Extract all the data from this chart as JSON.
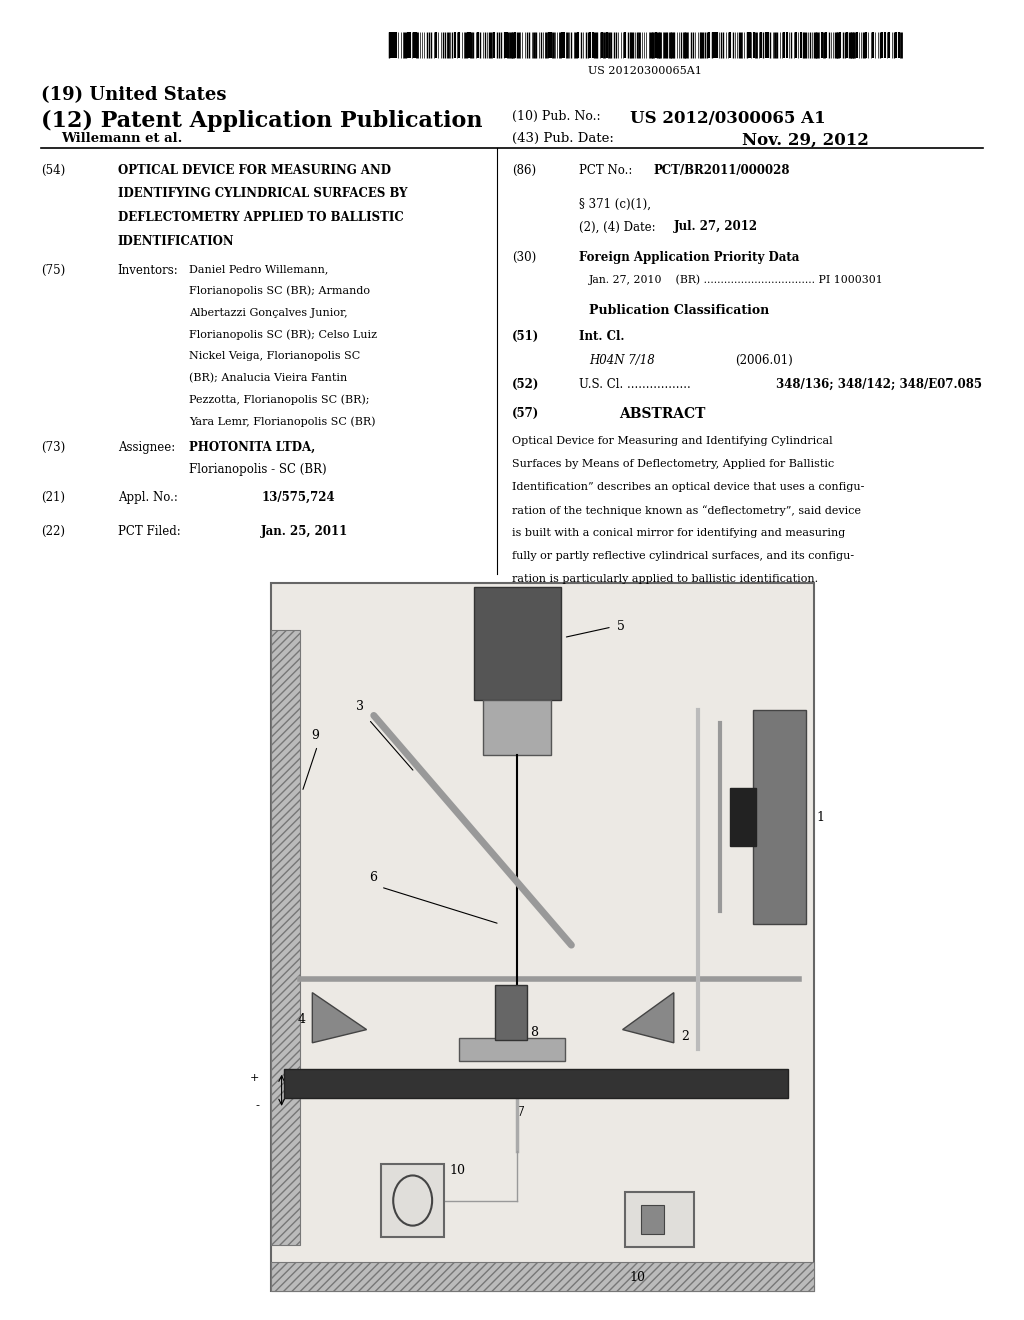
{
  "background_color": "#ffffff",
  "barcode_text": "US 20120300065A1",
  "title_19": "(19) United States",
  "title_12": "(12) Patent Application Publication",
  "pub_no_label": "(10) Pub. No.:",
  "pub_no_value": "US 2012/0300065 A1",
  "inventor_label": "Willemann et al.",
  "pub_date_label": "(43) Pub. Date:",
  "pub_date_value": "Nov. 29, 2012",
  "field_54_label": "(54)",
  "field_54_title_lines": [
    "OPTICAL DEVICE FOR MEASURING AND",
    "IDENTIFYING CYLINDRICAL SURFACES BY",
    "DEFLECTOMETRY APPLIED TO BALLISTIC",
    "IDENTIFICATION"
  ],
  "field_75_label": "(75)",
  "field_75_key": "Inventors:",
  "field_75_lines": [
    "Daniel Pedro Willemann,",
    "Florianopolis SC (BR); Armando",
    "Albertazzi Gonçalves Junior,",
    "Florianopolis SC (BR); Celso Luiz",
    "Nickel Veiga, Florianopolis SC",
    "(BR); Analucia Vieira Fantin",
    "Pezzotta, Florianopolis SC (BR);",
    "Yara Lemr, Florianopolis SC (BR)"
  ],
  "field_73_label": "(73)",
  "field_73_key": "Assignee:",
  "field_73_lines": [
    "PHOTONITA LTDA,",
    "Florianopolis - SC (BR)"
  ],
  "field_21_label": "(21)",
  "field_21_key": "Appl. No.:",
  "field_21_value": "13/575,724",
  "field_22_label": "(22)",
  "field_22_key": "PCT Filed:",
  "field_22_value": "Jan. 25, 2011",
  "field_86_label": "(86)",
  "field_86_key": "PCT No.:",
  "field_86_value": "PCT/BR2011/000028",
  "field_86_sub1": "§ 371 (c)(1),",
  "field_86_sub2": "(2), (4) Date:",
  "field_86_date": "Jul. 27, 2012",
  "field_30_label": "(30)",
  "field_30_title": "Foreign Application Priority Data",
  "field_30_data": "Jan. 27, 2010    (BR) ................................. PI 1000301",
  "pub_class_title": "Publication Classification",
  "field_51_label": "(51)",
  "field_51_key": "Int. Cl.",
  "field_51_class": "H04N 7/18",
  "field_51_year": "(2006.01)",
  "field_52_label": "(52)",
  "field_52_key": "U.S. Cl. .................",
  "field_52_value": "348/136; 348/142; 348/E07.085",
  "field_57_label": "(57)",
  "field_57_title": "ABSTRACT",
  "abstract_lines": [
    "Optical Device for Measuring and Identifying Cylindrical",
    "Surfaces by Means of Deflectometry, Applied for Ballistic",
    "Identification” describes an optical device that uses a configu-",
    "ration of the technique known as “deflectometry”, said device",
    "is built with a conical mirror for identifying and measuring",
    "fully or partly reflective cylindrical surfaces, and its configu-",
    "ration is particularly applied to ballistic identification."
  ]
}
